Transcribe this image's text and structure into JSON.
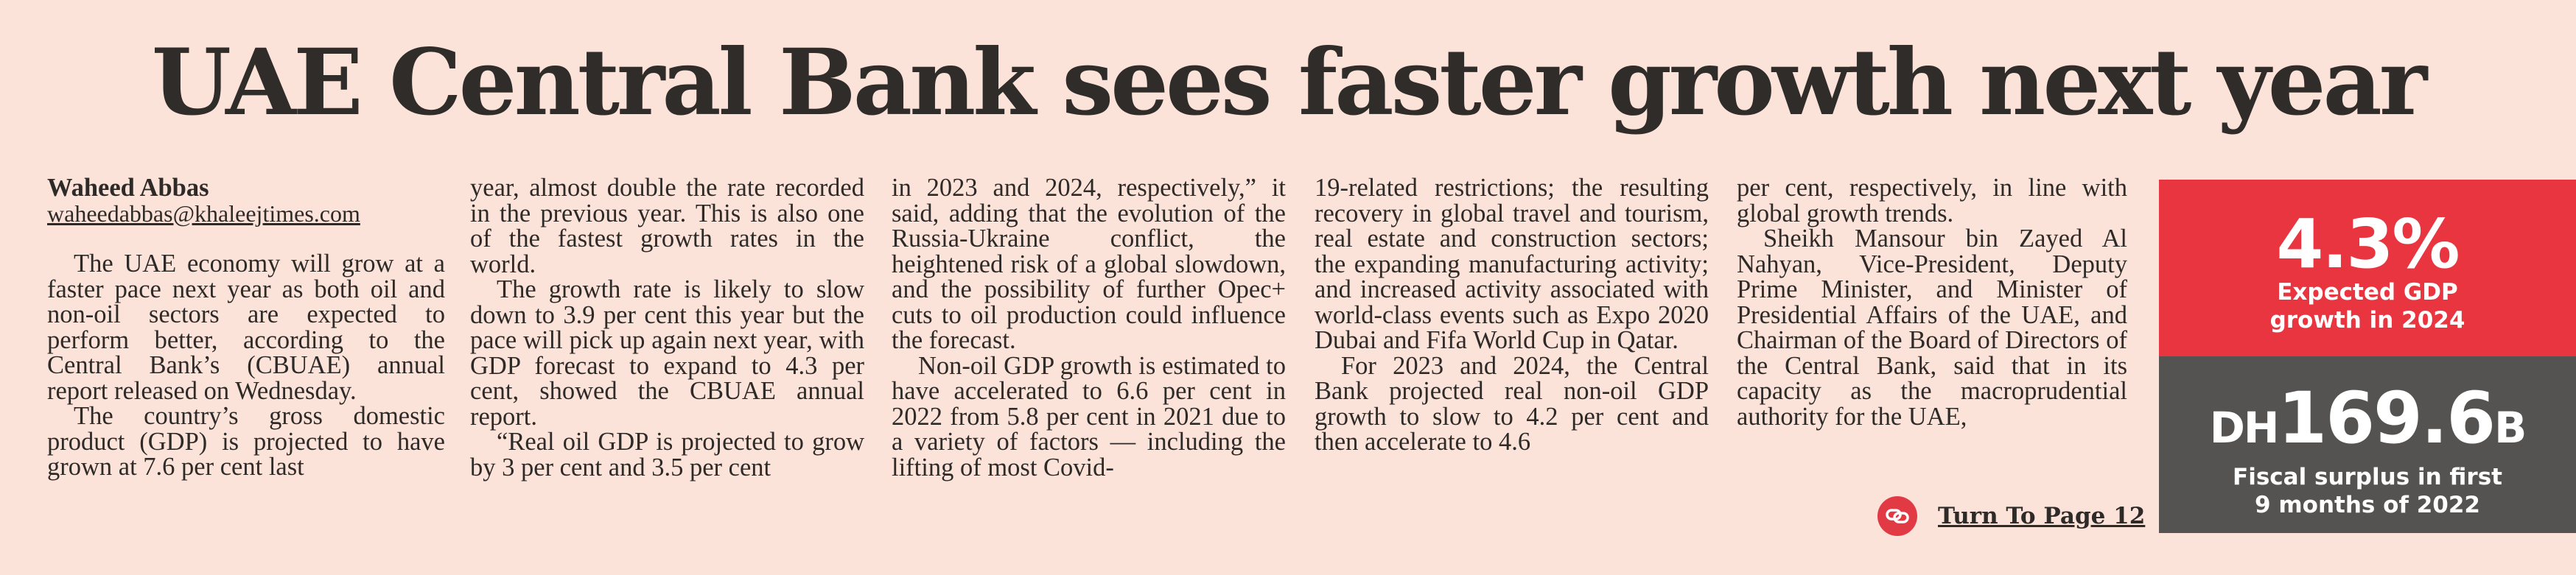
{
  "headline": "UAE Central Bank sees faster growth next year",
  "byline": {
    "author": "Waheed Abbas",
    "email": "waheedabbas@khaleejtimes.com"
  },
  "columns": [
    {
      "lines": [
        "The UAE economy will grow at a faster pace next year as both oil and non-oil sectors are expected to perform better, according to the Central Bank’s (CBUAE) annual report released on Wednesday.",
        "The country’s gross domestic product (GDP) is projected to have grown at 7.6 per cent last"
      ]
    },
    {
      "lines": [
        "year, almost double the rate recorded in the previous year. This is also one of the fastest growth rates in the world.",
        "The growth rate is likely to slow down to 3.9 per cent this year but the pace will pick up again next year, with GDP forecast to expand to 4.3 per cent, showed the CBUAE annual report.",
        "“Real oil GDP is projected to grow by 3 per cent and 3.5 per cent"
      ]
    },
    {
      "lines": [
        "in 2023 and 2024, respectively,” it said, adding that the evolution of the Russia-Ukraine conflict, the heightened risk of a global slowdown, and the possibility of further Opec+ cuts to oil production could influence the forecast.",
        "Non-oil GDP growth is estimated to have accelerated to 6.6 per cent in 2022 from 5.8 per cent in 2021 due to a variety of factors — including the lifting of most Covid-"
      ]
    },
    {
      "lines": [
        "19-related restrictions; the resulting recovery in global travel and tourism, real estate and construction sectors; the expanding manufacturing activity; and increased activity associated with world-class events such as Expo 2020 Dubai and Fifa World Cup in Qatar.",
        "For 2023 and 2024, the Central Bank projected real non-oil GDP growth to slow to 4.2 per cent and then accelerate to 4.6"
      ]
    },
    {
      "lines": [
        "per cent, respectively, in line with global growth trends.",
        "Sheikh Mansour bin Zayed Al Nahyan, Vice-President, Deputy Prime Minister, and Minister of Presidential Affairs of the UAE, and Chairman of the Board of Directors of the Central Bank, said that in its capacity as the macroprudential authority for the UAE,"
      ]
    }
  ],
  "turn_to": "Turn To Page 12",
  "stats": {
    "gdp": {
      "value": "4.3%",
      "caption_1": "Expected GDP",
      "caption_2": "growth in 2024"
    },
    "surplus": {
      "currency": "DH",
      "value": "169.6",
      "suffix": "B",
      "caption_1": "Fiscal surplus in first",
      "caption_2": "9 months of 2022"
    }
  },
  "colors": {
    "background": "#fbe3d9",
    "accent_red": "#e8353f",
    "panel_grey": "#555352"
  }
}
